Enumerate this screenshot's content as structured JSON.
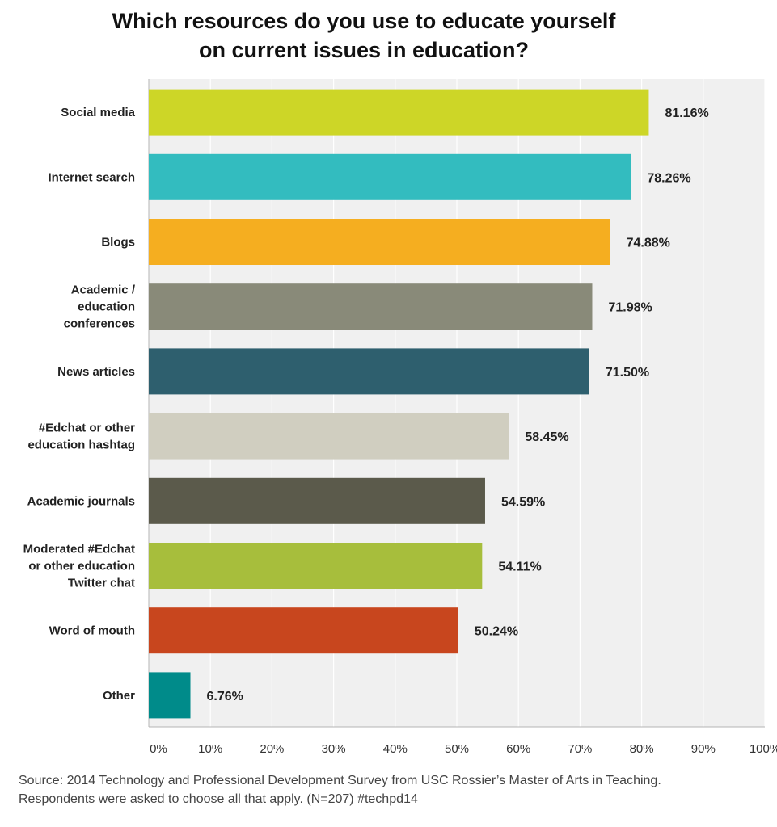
{
  "title_line1": "Which resources do you use to educate yourself",
  "title_line2": "on current issues in education?",
  "source_line1": "Source: 2014 Technology and Professional Development Survey from USC Rossier’s Master of Arts in Teaching.",
  "source_line2": "Respondents were asked to choose all that apply. (N=207) #techpd14",
  "chart_data": {
    "type": "bar",
    "orientation": "horizontal",
    "categories": [
      [
        "Social media"
      ],
      [
        "Internet search"
      ],
      [
        "Blogs"
      ],
      [
        "Academic /",
        "education",
        "conferences"
      ],
      [
        "News articles"
      ],
      [
        "#Edchat or other",
        "education hashtag"
      ],
      [
        "Academic journals"
      ],
      [
        "Moderated #Edchat",
        "or other education",
        "Twitter chat"
      ],
      [
        "Word of mouth"
      ],
      [
        "Other"
      ]
    ],
    "values": [
      81.16,
      78.26,
      74.88,
      71.98,
      71.5,
      58.45,
      54.59,
      54.11,
      50.24,
      6.76
    ],
    "value_labels": [
      "81.16%",
      "78.26%",
      "74.88%",
      "71.98%",
      "71.50%",
      "58.45%",
      "54.59%",
      "54.11%",
      "50.24%",
      "6.76%"
    ],
    "colors": [
      "#cdd627",
      "#33bcbf",
      "#f5ae20",
      "#898a79",
      "#2e5f6e",
      "#d0cec0",
      "#5b5a4b",
      "#a7be3c",
      "#c8461e",
      "#008b8a"
    ],
    "xlim": [
      0,
      100
    ],
    "xticks": [
      "0%",
      "10%",
      "20%",
      "30%",
      "40%",
      "50%",
      "60%",
      "70%",
      "80%",
      "90%",
      "100%"
    ],
    "grid": "vertical",
    "plot_background": "#f0f0f0",
    "grid_color": "#ffffff",
    "xlabel": "",
    "ylabel": ""
  }
}
